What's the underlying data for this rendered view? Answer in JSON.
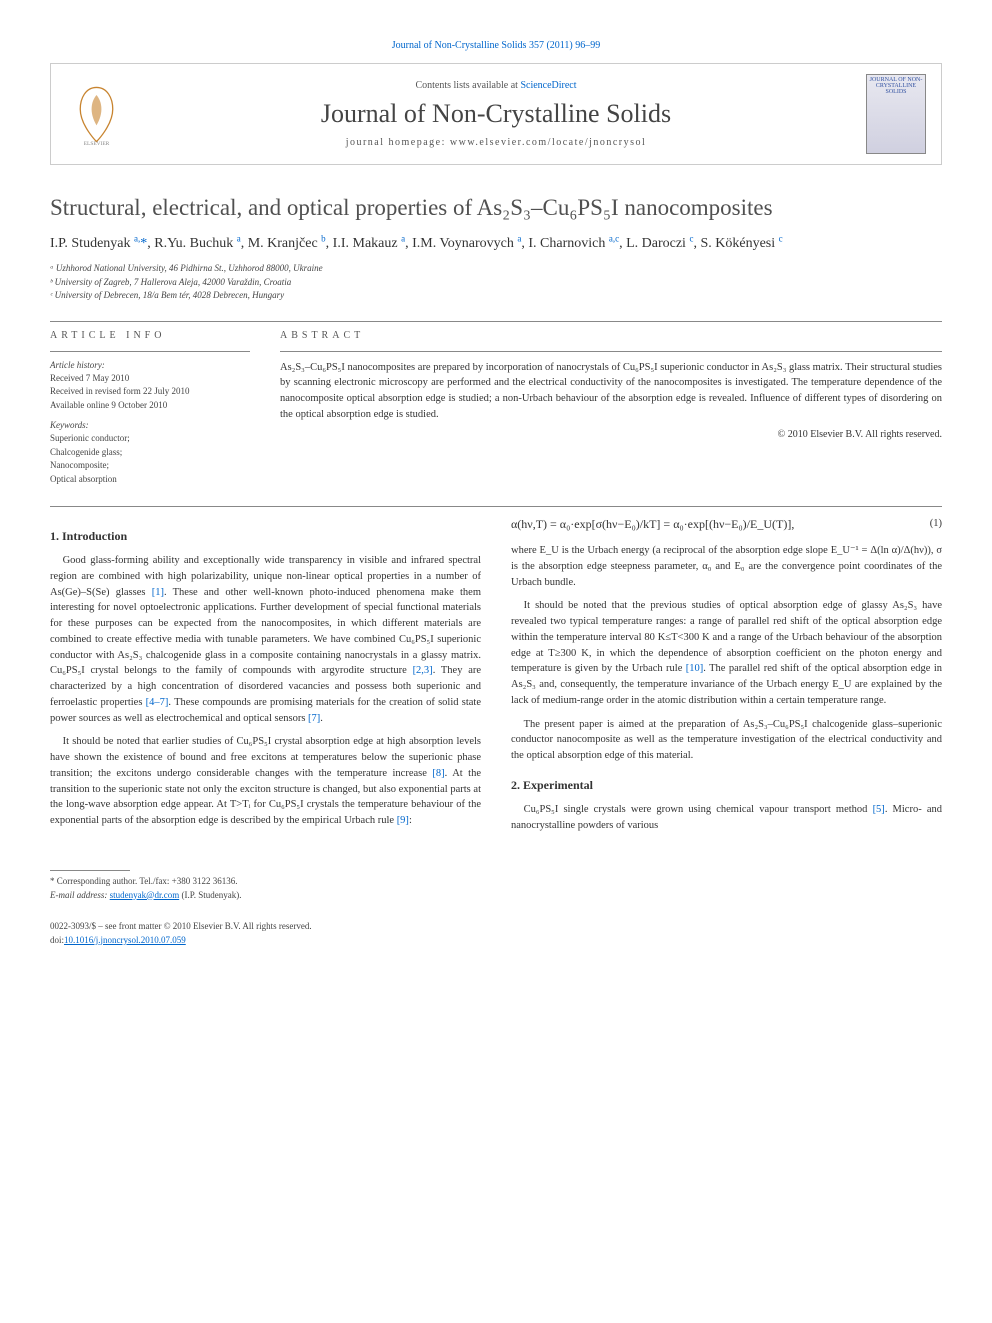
{
  "top_link": "Journal of Non-Crystalline Solids 357 (2011) 96–99",
  "header": {
    "contents_prefix": "Contents lists available at ",
    "contents_link": "ScienceDirect",
    "journal_name": "Journal of Non-Crystalline Solids",
    "homepage_prefix": "journal homepage: ",
    "homepage_url": "www.elsevier.com/locate/jnoncrysol",
    "cover_text": "JOURNAL OF NON-CRYSTALLINE SOLIDS"
  },
  "title": "Structural, electrical, and optical properties of As₂S₃–Cu₆PS₅I nanocomposites",
  "authors_html": "I.P. Studenyak <sup>a,</sup><span class='star'>*</span>, R.Yu. Buchuk <sup>a</sup>, M. Kranjčec <sup>b</sup>, I.I. Makauz <sup>a</sup>, I.M. Voynarovych <sup>a</sup>, I. Charnovich <sup>a,c</sup>, L. Daroczi <sup>c</sup>, S. Kökényesi <sup>c</sup>",
  "affiliations": [
    "ᵃ Uzhhorod National University, 46 Pidhirna St., Uzhhorod 88000, Ukraine",
    "ᵇ University of Zagreb, 7 Hallerova Aleja, 42000 Varaždin, Croatia",
    "ᶜ University of Debrecen, 18/a Bem tér, 4028 Debrecen, Hungary"
  ],
  "article_info": {
    "heading": "ARTICLE INFO",
    "history_head": "Article history:",
    "history": [
      "Received 7 May 2010",
      "Received in revised form 22 July 2010",
      "Available online 9 October 2010"
    ],
    "keywords_head": "Keywords:",
    "keywords": [
      "Superionic conductor;",
      "Chalcogenide glass;",
      "Nanocomposite;",
      "Optical absorption"
    ]
  },
  "abstract": {
    "heading": "ABSTRACT",
    "text": "As₂S₃–Cu₆PS₅I nanocomposites are prepared by incorporation of nanocrystals of Cu₆PS₅I superionic conductor in As₂S₃ glass matrix. Their structural studies by scanning electronic microscopy are performed and the electrical conductivity of the nanocomposites is investigated. The temperature dependence of the nanocomposite optical absorption edge is studied; a non-Urbach behaviour of the absorption edge is revealed. Influence of different types of disordering on the optical absorption edge is studied.",
    "copyright": "© 2010 Elsevier B.V. All rights reserved."
  },
  "sections": {
    "intro_heading": "1. Introduction",
    "intro_p1": "Good glass-forming ability and exceptionally wide transparency in visible and infrared spectral region are combined with high polarizability, unique non-linear optical properties in a number of As(Ge)–S(Se) glasses ",
    "ref1": "[1]",
    "intro_p1b": ". These and other well-known photo-induced phenomena make them interesting for novel optoelectronic applications. Further development of special functional materials for these purposes can be expected from the nanocomposites, in which different materials are combined to create effective media with tunable parameters. We have combined Cu₆PS₅I superionic conductor with As₂S₃ chalcogenide glass in a composite containing nanocrystals in a glassy matrix. Cu₆PS₅I crystal belongs to the family of compounds with argyrodite structure ",
    "ref23": "[2,3]",
    "intro_p1c": ". They are characterized by a high concentration of disordered vacancies and possess both superionic and ferroelastic properties ",
    "ref47": "[4–7]",
    "intro_p1d": ". These compounds are promising materials for the creation of solid state power sources as well as electrochemical and optical sensors ",
    "ref7": "[7]",
    "intro_p1e": ".",
    "intro_p2a": "It should be noted that earlier studies of Cu₆PS₅I crystal absorption edge at high absorption levels have shown the existence of bound and free excitons at temperatures below the superionic phase transition; the excitons undergo considerable changes with the temperature increase ",
    "ref8": "[8]",
    "intro_p2b": ". At the transition to the superionic state not only the exciton structure is changed, but also exponential parts at the long-wave absorption edge appear. At T>Tᵢ for Cu₆PS₅I crystals the temperature behaviour of the exponential parts of the absorption edge is described by the empirical Urbach rule ",
    "ref9": "[9]",
    "intro_p2c": ":",
    "equation": "α(hν,T) = α₀·exp[σ(hν−E₀)/kT] = α₀·exp[(hν−E₀)/E_U(T)],",
    "eq_num": "(1)",
    "intro_p3a": "where E_U is the Urbach energy (a reciprocal of the absorption edge slope E_U⁻¹ = Δ(ln α)/Δ(hν)), σ is the absorption edge steepness parameter, α₀ and E₀ are the convergence point coordinates of the Urbach bundle.",
    "intro_p4a": "It should be noted that the previous studies of optical absorption edge of glassy As₂S₃ have revealed two typical temperature ranges: a range of parallel red shift of the optical absorption edge within the temperature interval 80 K≤T<300 K and a range of the Urbach behaviour of the absorption edge at T≥300 K, in which the dependence of absorption coefficient on the photon energy and temperature is given by the Urbach rule ",
    "ref10": "[10]",
    "intro_p4b": ". The parallel red shift of the optical absorption edge in As₂S₃ and, consequently, the temperature invariance of the Urbach energy E_U are explained by the lack of medium-range order in the atomic distribution within a certain temperature range.",
    "intro_p5": "The present paper is aimed at the preparation of As₂S₃–Cu₆PS₅I chalcogenide glass–superionic conductor nanocomposite as well as the temperature investigation of the electrical conductivity and the optical absorption edge of this material.",
    "exp_heading": "2. Experimental",
    "exp_p1a": "Cu₆PS₅I single crystals were grown using chemical vapour transport method ",
    "ref5": "[5]",
    "exp_p1b": ". Micro- and nanocrystalline powders of various"
  },
  "footnote": {
    "corr": "* Corresponding author. Tel./fax: +380 3122 36136.",
    "email_label": "E-mail address: ",
    "email": "studenyak@dr.com",
    "email_suffix": " (I.P. Studenyak)."
  },
  "bottom": {
    "issn": "0022-3093/$ – see front matter © 2010 Elsevier B.V. All rights reserved.",
    "doi_label": "doi:",
    "doi": "10.1016/j.jnoncrysol.2010.07.059"
  },
  "colors": {
    "link": "#0066cc",
    "text": "#333333",
    "rule": "#888888"
  }
}
